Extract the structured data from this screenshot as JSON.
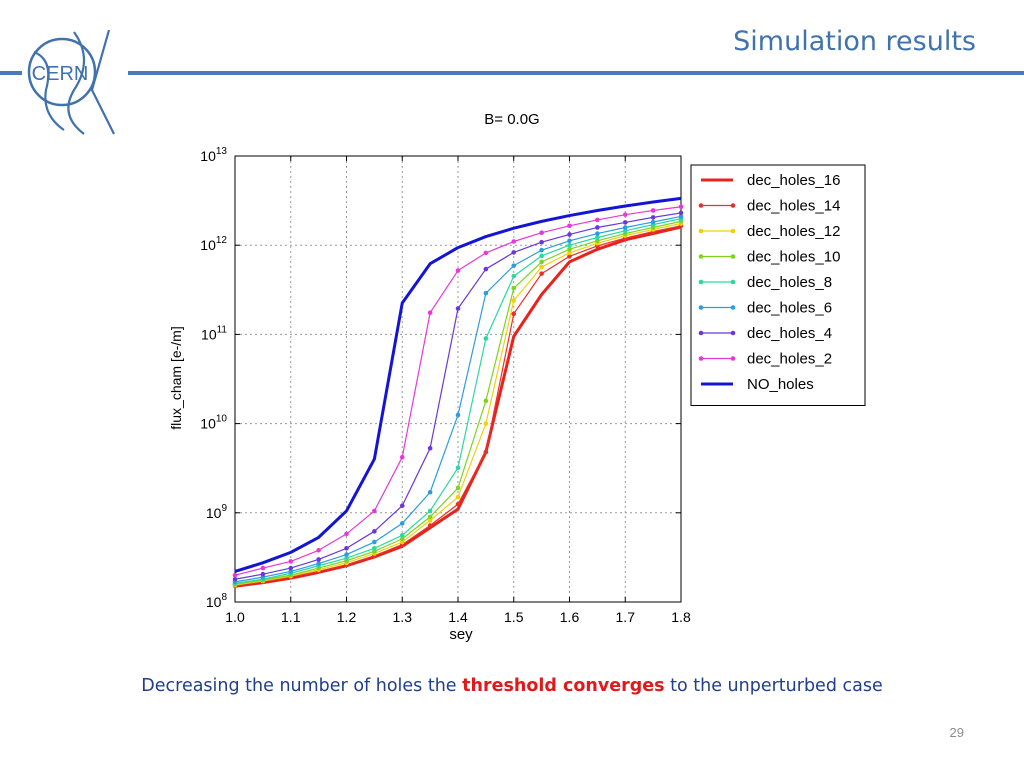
{
  "slide": {
    "title": "Simulation results",
    "logo_text": "CERN",
    "caption_pre": "Decreasing the number of holes the ",
    "caption_highlight": "threshold converges",
    "caption_post": " to the unperturbed case",
    "page_number": "29",
    "colors": {
      "title": "#3f72ae",
      "rule": "#4a7ab8",
      "caption": "#1f3e8c",
      "highlight": "#e01a1a"
    }
  },
  "chart_data": {
    "type": "line",
    "title": "B= 0.0G",
    "xlabel": "sey",
    "ylabel": "flux_cham [e-/m]",
    "xlim": [
      1.0,
      1.8
    ],
    "ylim": [
      100000000,
      10000000000000
    ],
    "yscale": "log",
    "grid": true,
    "legend_position": "right",
    "x_ticks": [
      "1.0",
      "1.1",
      "1.2",
      "1.3",
      "1.4",
      "1.5",
      "1.6",
      "1.7",
      "1.8"
    ],
    "y_ticks": [
      {
        "base": "10",
        "exp": "8"
      },
      {
        "base": "10",
        "exp": "9"
      },
      {
        "base": "10",
        "exp": "10"
      },
      {
        "base": "10",
        "exp": "11"
      },
      {
        "base": "10",
        "exp": "12"
      },
      {
        "base": "10",
        "exp": "13"
      }
    ],
    "x": [
      1.0,
      1.05,
      1.1,
      1.15,
      1.2,
      1.25,
      1.3,
      1.35,
      1.4,
      1.45,
      1.5,
      1.55,
      1.6,
      1.65,
      1.7,
      1.75,
      1.8
    ],
    "series": [
      {
        "name": "dec_holes_16",
        "color": "#e8221c",
        "markers": false,
        "width": 3,
        "values": [
          150000000.0,
          165000000.0,
          185000000.0,
          215000000.0,
          255000000.0,
          320000000.0,
          420000000.0,
          680000000.0,
          1100000000.0,
          4800000000.0,
          95000000000.0,
          280000000000.0,
          650000000000.0,
          900000000000.0,
          1150000000000.0,
          1350000000000.0,
          1600000000000.0
        ]
      },
      {
        "name": "dec_holes_14",
        "color": "#e8312b",
        "markers": true,
        "width": 1.2,
        "values": [
          152000000.0,
          170000000.0,
          190000000.0,
          220000000.0,
          260000000.0,
          330000000.0,
          440000000.0,
          720000000.0,
          1250000000.0,
          4800000000.0,
          170000000000.0,
          480000000000.0,
          750000000000.0,
          980000000000.0,
          1200000000000.0,
          1420000000000.0,
          1650000000000.0
        ]
      },
      {
        "name": "dec_holes_12",
        "color": "#f2d00e",
        "markers": true,
        "width": 1.2,
        "values": [
          155000000.0,
          172000000.0,
          195000000.0,
          230000000.0,
          275000000.0,
          350000000.0,
          470000000.0,
          820000000.0,
          1500000000.0,
          10000000000.0,
          240000000000.0,
          570000000000.0,
          820000000000.0,
          1050000000000.0,
          1280000000000.0,
          1500000000000.0,
          1750000000000.0
        ]
      },
      {
        "name": "dec_holes_10",
        "color": "#7ed321",
        "markers": true,
        "width": 1.2,
        "values": [
          158000000.0,
          176000000.0,
          200000000.0,
          240000000.0,
          290000000.0,
          370000000.0,
          510000000.0,
          900000000.0,
          1900000000.0,
          18000000000.0,
          330000000000.0,
          650000000000.0,
          900000000000.0,
          1120000000000.0,
          1350000000000.0,
          1580000000000.0,
          1850000000000.0
        ]
      },
      {
        "name": "dec_holes_8",
        "color": "#2bd9a0",
        "markers": true,
        "width": 1.2,
        "values": [
          162000000.0,
          180000000.0,
          210000000.0,
          255000000.0,
          310000000.0,
          400000000.0,
          560000000.0,
          1050000000.0,
          3200000000.0,
          90000000000.0,
          450000000000.0,
          760000000000.0,
          1000000000000.0,
          1220000000000.0,
          1450000000000.0,
          1700000000000.0,
          1980000000000.0
        ]
      },
      {
        "name": "dec_holes_6",
        "color": "#2b9de0",
        "markers": true,
        "width": 1.2,
        "values": [
          168000000.0,
          190000000.0,
          220000000.0,
          270000000.0,
          340000000.0,
          470000000.0,
          760000000.0,
          1700000000.0,
          12500000000.0,
          290000000000.0,
          590000000000.0,
          880000000000.0,
          1120000000000.0,
          1350000000000.0,
          1580000000000.0,
          1820000000000.0,
          2100000000000.0
        ]
      },
      {
        "name": "dec_holes_4",
        "color": "#6a38d8",
        "markers": true,
        "width": 1.2,
        "values": [
          180000000.0,
          205000000.0,
          240000000.0,
          300000000.0,
          400000000.0,
          620000000.0,
          1200000000.0,
          5300000000.0,
          195000000000.0,
          540000000000.0,
          830000000000.0,
          1080000000000.0,
          1320000000000.0,
          1580000000000.0,
          1800000000000.0,
          2050000000000.0,
          2300000000000.0
        ]
      },
      {
        "name": "dec_holes_2",
        "color": "#e838d6",
        "markers": true,
        "width": 1.2,
        "values": [
          200000000.0,
          240000000.0,
          285000000.0,
          380000000.0,
          580000000.0,
          1050000000.0,
          4200000000.0,
          175000000000.0,
          520000000000.0,
          820000000000.0,
          1100000000000.0,
          1380000000000.0,
          1650000000000.0,
          1920000000000.0,
          2200000000000.0,
          2450000000000.0,
          2700000000000.0
        ]
      },
      {
        "name": "NO_holes",
        "color": "#1414d4",
        "markers": false,
        "width": 3,
        "values": [
          220000000.0,
          275000000.0,
          360000000.0,
          530000000.0,
          1050000000.0,
          4000000000.0,
          225000000000.0,
          620000000000.0,
          940000000000.0,
          1250000000000.0,
          1550000000000.0,
          1850000000000.0,
          2150000000000.0,
          2450000000000.0,
          2750000000000.0,
          3050000000000.0,
          3350000000000.0
        ]
      }
    ]
  }
}
